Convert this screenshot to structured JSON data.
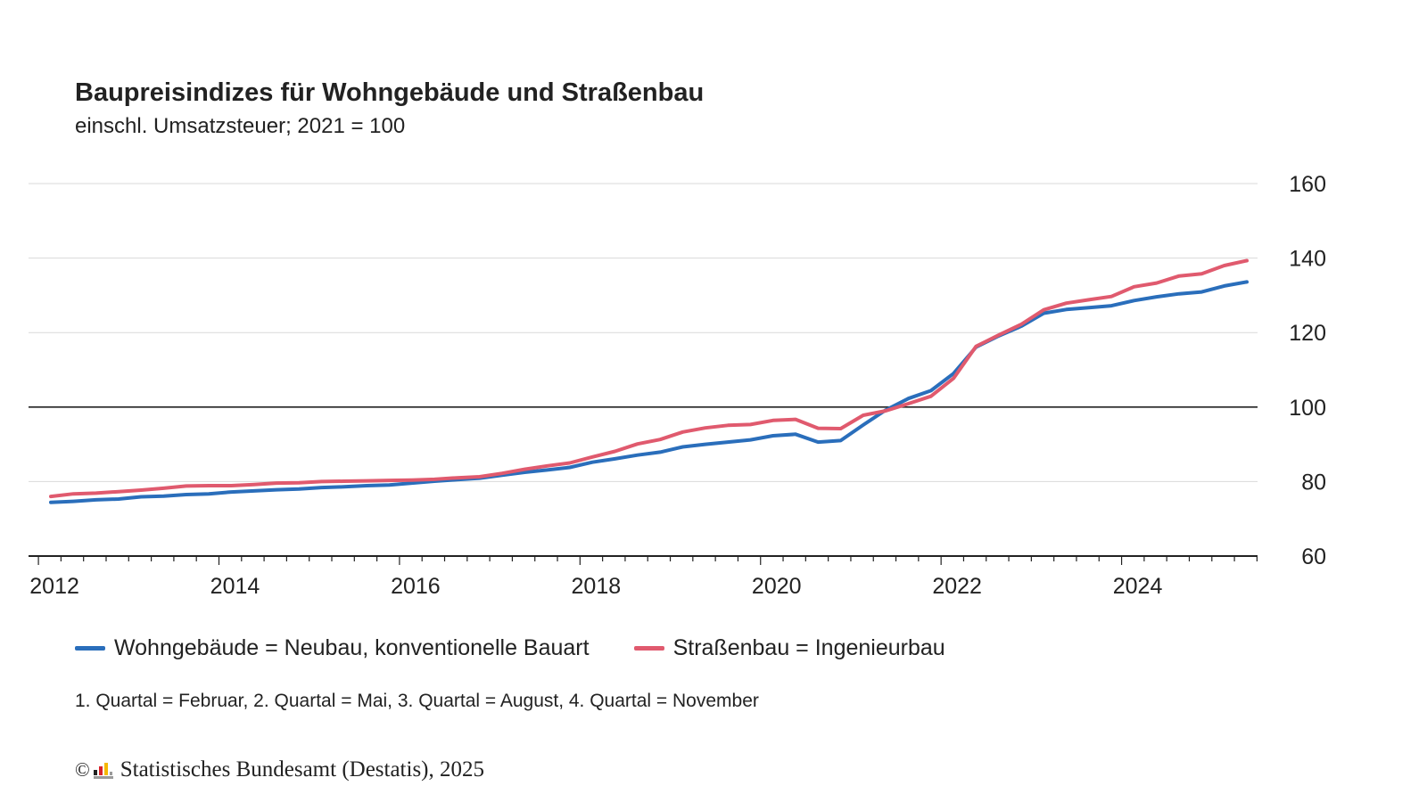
{
  "title": "Baupreisindizes für Wohngebäude und Straßenbau",
  "subtitle": "einschl. Umsatzsteuer; 2021 = 100",
  "note": "1. Quartal = Februar, 2. Quartal = Mai, 3. Quartal = August, 4. Quartal = November",
  "source": {
    "copyright_symbol": "©",
    "text": "Statistisches Bundesamt (Destatis), 2025",
    "logo_icon": "destatis-logo-icon"
  },
  "colors": {
    "wohngebaeude": "#2a6ebb",
    "strassenbau": "#e05a6e",
    "grid": "#d9d9d9",
    "reference_line": "#222222",
    "axis": "#222222",
    "text": "#222222"
  },
  "chart_data": {
    "type": "line",
    "title": "Baupreisindizes für Wohngebäude und Straßenbau",
    "subtitle": "einschl. Umsatzsteuer; 2021 = 100",
    "xlabel": "",
    "ylabel": "",
    "ylim": [
      60,
      160
    ],
    "y_ticks": [
      60,
      80,
      100,
      120,
      140,
      160
    ],
    "x_ticks": [
      "2012",
      "2014",
      "2016",
      "2018",
      "2020",
      "2022",
      "2024"
    ],
    "x_unit": "quarter",
    "x_start": "2012 Q1",
    "x_end": "2025 Q2",
    "reference_line": 100,
    "grid": true,
    "legend_position": "bottom",
    "x": [
      "2012 Q1",
      "2012 Q2",
      "2012 Q3",
      "2012 Q4",
      "2013 Q1",
      "2013 Q2",
      "2013 Q3",
      "2013 Q4",
      "2014 Q1",
      "2014 Q2",
      "2014 Q3",
      "2014 Q4",
      "2015 Q1",
      "2015 Q2",
      "2015 Q3",
      "2015 Q4",
      "2016 Q1",
      "2016 Q2",
      "2016 Q3",
      "2016 Q4",
      "2017 Q1",
      "2017 Q2",
      "2017 Q3",
      "2017 Q4",
      "2018 Q1",
      "2018 Q2",
      "2018 Q3",
      "2018 Q4",
      "2019 Q1",
      "2019 Q2",
      "2019 Q3",
      "2019 Q4",
      "2020 Q1",
      "2020 Q2",
      "2020 Q3",
      "2020 Q4",
      "2021 Q1",
      "2021 Q2",
      "2021 Q3",
      "2021 Q4",
      "2022 Q1",
      "2022 Q2",
      "2022 Q3",
      "2022 Q4",
      "2023 Q1",
      "2023 Q2",
      "2023 Q3",
      "2023 Q4",
      "2024 Q1",
      "2024 Q2",
      "2024 Q3",
      "2024 Q4",
      "2025 Q1",
      "2025 Q2"
    ],
    "series": [
      {
        "name": "Wohngebäude = Neubau, konventionelle Bauart",
        "color": "#2a6ebb",
        "values": [
          74.4,
          74.7,
          75.1,
          75.3,
          75.9,
          76.1,
          76.5,
          76.7,
          77.2,
          77.5,
          77.8,
          78.0,
          78.4,
          78.6,
          78.9,
          79.1,
          79.6,
          80.1,
          80.5,
          80.9,
          81.7,
          82.5,
          83.1,
          83.8,
          85.2,
          86.1,
          87.1,
          87.9,
          89.3,
          90.0,
          90.6,
          91.2,
          92.3,
          92.7,
          90.6,
          91.0,
          95.2,
          99.2,
          102.3,
          104.4,
          109.0,
          116.1,
          119.1,
          121.7,
          125.2,
          126.2,
          126.7,
          127.2,
          128.6,
          129.6,
          130.4,
          130.9,
          132.5,
          133.6
        ]
      },
      {
        "name": "Straßenbau = Ingenieurbau",
        "color": "#e05a6e",
        "values": [
          76.0,
          76.7,
          76.9,
          77.3,
          77.7,
          78.2,
          78.8,
          78.9,
          78.9,
          79.2,
          79.6,
          79.7,
          80.0,
          80.1,
          80.2,
          80.3,
          80.4,
          80.6,
          81.0,
          81.3,
          82.2,
          83.3,
          84.2,
          85.0,
          86.6,
          88.1,
          90.1,
          91.3,
          93.3,
          94.4,
          95.1,
          95.3,
          96.4,
          96.7,
          94.3,
          94.2,
          97.8,
          99.0,
          100.9,
          102.9,
          107.7,
          116.3,
          119.3,
          122.2,
          126.1,
          127.9,
          128.8,
          129.7,
          132.3,
          133.3,
          135.2,
          135.8,
          138.0,
          139.3
        ]
      }
    ]
  }
}
